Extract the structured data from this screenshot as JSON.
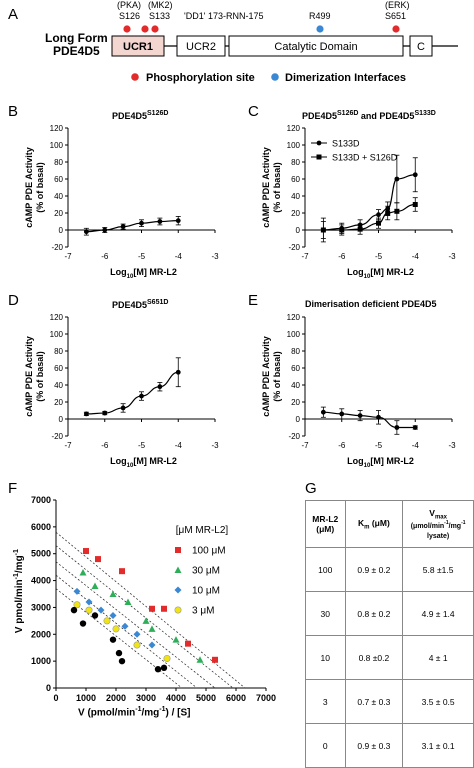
{
  "panel_labels": {
    "A": "A",
    "B": "B",
    "C": "C",
    "D": "D",
    "E": "E",
    "F": "F",
    "G": "G"
  },
  "panelA": {
    "title_line1": "Long Form",
    "title_line2": "PDE4D5",
    "sites": [
      {
        "top": "(PKA)",
        "bottom": "S126"
      },
      {
        "top": "(MK2)",
        "bottom": "S133"
      },
      {
        "top": "",
        "bottom": "'DD1' 173-RNN-175"
      },
      {
        "top": "",
        "bottom": "R499"
      },
      {
        "top": "(ERK)",
        "bottom": "S651"
      }
    ],
    "domains": [
      "UCR1",
      "UCR2",
      "Catalytic Domain",
      "C"
    ],
    "legend": [
      {
        "label": "Phosphorylation site",
        "color": "#e32b2b"
      },
      {
        "label": "Dimerization Interfaces",
        "color": "#3a87d3"
      }
    ],
    "colors": {
      "ucr1_fill": "#f4d6d0",
      "phospho": "#e32b2b",
      "dimer": "#3a87d3"
    }
  },
  "ylabel_line1": "cAMP PDE Activity",
  "ylabel_line2": "(% of basal)",
  "xlabel_pre": "Log",
  "xlabel_sub": "10",
  "xlabel_post": "[M] MR-L2",
  "panelB": {
    "title_main": "PDE4D5",
    "title_sup": "S126D"
  },
  "panelC": {
    "title_a_main": "PDE4D5",
    "title_a_sup": "S126D",
    "title_and": " and PDE4D5",
    "title_b_sup": "S133D"
  },
  "panelD": {
    "title_main": "PDE4D5",
    "title_sup": "S651D"
  },
  "panelE": {
    "title": "Dimerisation deficient PDE4D5"
  },
  "chart_data": [
    {
      "type": "line",
      "panel": "B",
      "title": "PDE4D5S126D",
      "xlabel": "Log10[M] MR-L2",
      "ylabel": "cAMP PDE Activity (% of basal)",
      "xlim": [
        -7,
        -3
      ],
      "ylim": [
        -20,
        120
      ],
      "xticks": [
        "-7",
        "-6",
        "-5",
        "-4",
        "-3"
      ],
      "yticks": [
        "-20",
        "0",
        "20",
        "40",
        "60",
        "80",
        "100",
        "120"
      ],
      "series": [
        {
          "x": [
            -6.5,
            -6,
            -5.5,
            -5,
            -4.5,
            -4
          ],
          "y": [
            -2,
            0,
            4,
            8,
            10,
            11
          ],
          "err": [
            4,
            3,
            3,
            4,
            4,
            5
          ],
          "marker": "circle"
        }
      ]
    },
    {
      "type": "line",
      "panel": "C",
      "title": "PDE4D5S126D and PDE4D5S133D",
      "xlabel": "Log10[M] MR-L2",
      "ylabel": "cAMP PDE Activity (% of basal)",
      "xlim": [
        -7,
        -3
      ],
      "ylim": [
        -20,
        120
      ],
      "xticks": [
        "-7",
        "-6",
        "-5",
        "-4",
        "-3"
      ],
      "yticks": [
        "-20",
        "0",
        "20",
        "40",
        "60",
        "80",
        "100",
        "120"
      ],
      "legend_position": "top-left",
      "series": [
        {
          "name": "S133D",
          "x": [
            -6.5,
            -6,
            -5.5,
            -5,
            -4.75,
            -4.5,
            -4
          ],
          "y": [
            0,
            2,
            6,
            18,
            25,
            60,
            65
          ],
          "err": [
            14,
            6,
            6,
            6,
            8,
            28,
            20
          ],
          "marker": "circle"
        },
        {
          "name": "S133D + S126D",
          "x": [
            -6.5,
            -6,
            -5.5,
            -5,
            -4.75,
            -4.5,
            -4
          ],
          "y": [
            0,
            0,
            1,
            8,
            20,
            22,
            30
          ],
          "err": [
            10,
            6,
            6,
            6,
            8,
            10,
            8
          ],
          "marker": "square"
        }
      ]
    },
    {
      "type": "line",
      "panel": "D",
      "title": "PDE4D5S651D",
      "xlabel": "Log10[M] MR-L2",
      "ylabel": "cAMP PDE Activity (% of basal)",
      "xlim": [
        -7,
        -3
      ],
      "ylim": [
        -20,
        120
      ],
      "xticks": [
        "-7",
        "-6",
        "-5",
        "-4",
        "-3"
      ],
      "yticks": [
        "-20",
        "0",
        "20",
        "40",
        "60",
        "80",
        "100",
        "120"
      ],
      "series": [
        {
          "x": [
            -6.5,
            -6,
            -5.5,
            -5,
            -4.5,
            -4
          ],
          "y": [
            6,
            7,
            13,
            27,
            38,
            55
          ],
          "err": [
            2,
            2,
            5,
            5,
            5,
            17
          ],
          "marker": "circle"
        }
      ]
    },
    {
      "type": "line",
      "panel": "E",
      "title": "Dimerisation deficient PDE4D5",
      "xlabel": "Log10[M] MR-L2",
      "ylabel": "cAMP PDE Activity (% of basal)",
      "xlim": [
        -7,
        -3
      ],
      "ylim": [
        -20,
        120
      ],
      "xticks": [
        "-7",
        "-6",
        "-5",
        "-4",
        "-3"
      ],
      "yticks": [
        "-20",
        "0",
        "20",
        "40",
        "60",
        "80",
        "100",
        "120"
      ],
      "series": [
        {
          "x": [
            -6.5,
            -6,
            -5.5,
            -5,
            -4.5,
            -4
          ],
          "y": [
            8,
            6,
            4,
            2,
            -10,
            -10
          ],
          "err": [
            6,
            6,
            6,
            8,
            8,
            2
          ],
          "marker": "circle"
        }
      ]
    },
    {
      "type": "scatter",
      "panel": "F",
      "xlabel": "V (pmol/min-1/mg-1) / [S]",
      "ylabel": "V pmol/min-1/mg-1",
      "xlim": [
        0,
        7000
      ],
      "ylim": [
        0,
        7000
      ],
      "xticks": [
        "0",
        "1000",
        "2000",
        "3000",
        "4000",
        "5000",
        "6000",
        "7000"
      ],
      "yticks": [
        "0",
        "1000",
        "2000",
        "3000",
        "4000",
        "5000",
        "6000",
        "7000"
      ],
      "legend_title": "[μM MR-L2]",
      "legend_position": "right",
      "series": [
        {
          "name": "100 μM",
          "color": "#e32b2b",
          "marker": "square",
          "x": [
            1000,
            1400,
            2200,
            3200,
            3600,
            4400,
            5300
          ],
          "y": [
            5100,
            4800,
            4350,
            2950,
            2950,
            1650,
            1050
          ],
          "line": [
            [
              0,
              5800
            ],
            [
              6300,
              0
            ]
          ]
        },
        {
          "name": "30 μM",
          "color": "#2fae5a",
          "marker": "triangle",
          "x": [
            900,
            1300,
            1900,
            2400,
            3000,
            3200,
            4000,
            4800
          ],
          "y": [
            4300,
            3800,
            3500,
            3200,
            2500,
            2200,
            1800,
            1050
          ],
          "line": [
            [
              0,
              5300
            ],
            [
              5900,
              0
            ]
          ]
        },
        {
          "name": "10 μM",
          "color": "#3a87d3",
          "marker": "diamond",
          "x": [
            700,
            1100,
            1500,
            1900,
            2300,
            2700,
            3200,
            3700
          ],
          "y": [
            3600,
            3200,
            2900,
            2700,
            2300,
            2000,
            1600,
            1100
          ],
          "line": [
            [
              0,
              4700
            ],
            [
              5300,
              0
            ]
          ]
        },
        {
          "name": "3 μM",
          "color": "#f0e415",
          "marker": "circle",
          "x": [
            700,
            1100,
            1700,
            2000,
            2700,
            3700
          ],
          "y": [
            3100,
            2900,
            2500,
            2200,
            1600,
            1100
          ],
          "line": [
            [
              0,
              4200
            ],
            [
              4700,
              0
            ]
          ]
        },
        {
          "name": "0",
          "color": "#000000",
          "marker": "circle",
          "x": [
            600,
            900,
            1300,
            1900,
            2100,
            2200,
            3400,
            3600
          ],
          "y": [
            2900,
            2400,
            2700,
            1800,
            1300,
            1000,
            700,
            750
          ],
          "line": [
            [
              0,
              3700
            ],
            [
              4200,
              0
            ]
          ]
        }
      ]
    }
  ],
  "panelF": {
    "ylabel_pre": "V pmol/min",
    "ylabel_sup1": "-1",
    "ylabel_mid": "/mg",
    "ylabel_sup2": "-1",
    "xlabel_pre": "V (pmol/min",
    "xlabel_sup1": "-1",
    "xlabel_mid": "/mg",
    "xlabel_sup2": "-1",
    "xlabel_post": ") / [S]",
    "legend_title": "[μM MR-L2]",
    "legend_items": [
      "100 μM",
      "30 μM",
      "10 μM",
      "3 μM"
    ]
  },
  "panelG": {
    "header": {
      "col1_a": "MR-L2",
      "col1_b": "(μM)",
      "col2_pre": "K",
      "col2_sub": "m",
      "col2_post": " (μM)",
      "col3_pre": "V",
      "col3_sub": "max",
      "col3_line2": "(μmol/min",
      "col3_sup1": "-1",
      "col3_mid": "/mg",
      "col3_sup2": "-1",
      "col3_line3": "lysate)"
    },
    "rows": [
      [
        "100",
        "0.9 ± 0.2",
        "5.8 ±1.5"
      ],
      [
        "30",
        "0.8 ± 0.2",
        "4.9 ± 1.4"
      ],
      [
        "10",
        "0.8 ±0.2",
        "4 ± 1"
      ],
      [
        "3",
        "0.7 ± 0.3",
        "3.5 ± 0.5"
      ],
      [
        "0",
        "0.9 ± 0.3",
        "3.1 ± 0.1"
      ]
    ]
  }
}
